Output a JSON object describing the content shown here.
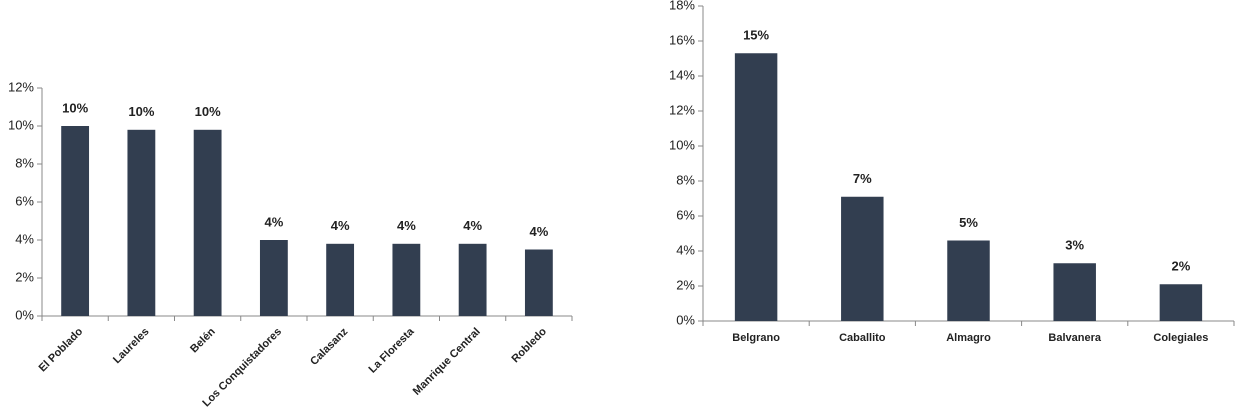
{
  "chart_data": [
    {
      "type": "bar",
      "color": "#323e50",
      "categories": [
        "El Poblado",
        "Laureles",
        "Belén",
        "Los Conquistadores",
        "Calasanz",
        "La Floresta",
        "Manrique Central",
        "Robledo"
      ],
      "values": [
        10.0,
        9.8,
        9.8,
        4.0,
        3.8,
        3.8,
        3.8,
        3.5
      ],
      "value_labels": [
        "10%",
        "10%",
        "10%",
        "4%",
        "4%",
        "4%",
        "4%",
        "4%"
      ],
      "ylim": [
        0,
        12
      ],
      "yticks": [
        {
          "value": 0,
          "label": "0%"
        },
        {
          "value": 2,
          "label": "2%"
        },
        {
          "value": 4,
          "label": "4%"
        },
        {
          "value": 6,
          "label": "6%"
        },
        {
          "value": 8,
          "label": "8%"
        },
        {
          "value": 10,
          "label": "10%"
        },
        {
          "value": 12,
          "label": "12%"
        }
      ]
    },
    {
      "type": "bar",
      "color": "#323e50",
      "categories": [
        "Belgrano",
        "Caballito",
        "Almagro",
        "Balvanera",
        "Colegiales"
      ],
      "values": [
        15.3,
        7.1,
        4.6,
        3.3,
        2.1
      ],
      "value_labels": [
        "15%",
        "7%",
        "5%",
        "3%",
        "2%"
      ],
      "ylim": [
        0,
        18
      ],
      "yticks": [
        {
          "value": 0,
          "label": "0%"
        },
        {
          "value": 2,
          "label": "2%"
        },
        {
          "value": 4,
          "label": "4%"
        },
        {
          "value": 6,
          "label": "6%"
        },
        {
          "value": 8,
          "label": "8%"
        },
        {
          "value": 10,
          "label": "10%"
        },
        {
          "value": 12,
          "label": "12%"
        },
        {
          "value": 14,
          "label": "14%"
        },
        {
          "value": 16,
          "label": "16%"
        },
        {
          "value": 18,
          "label": "18%"
        }
      ]
    }
  ]
}
